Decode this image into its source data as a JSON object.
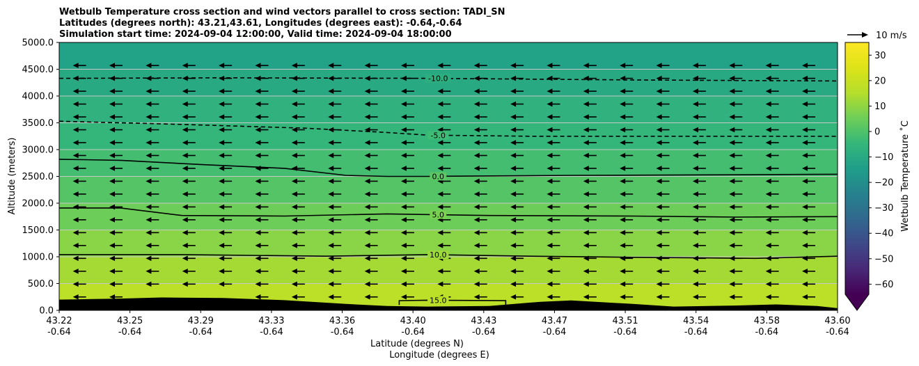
{
  "chart_data": {
    "type": "contourf",
    "title_lines": [
      "Wetbulb Temperature cross section and wind vectors parallel to cross section: TADI_SN",
      "Latitudes (degrees north): 43.21,43.61, Longitudes (degrees east): -0.64,-0.64",
      "Simulation start time: 2024-09-04 12:00:00, Valid time: 2024-09-04 18:00:00"
    ],
    "xlabel": "Latitude (degrees N)",
    "xlabel2": "Longitude (degrees E)",
    "ylabel": "Altitude (meters)",
    "ylim": [
      0,
      5000
    ],
    "x_ticks": [
      {
        "lat": "43.22",
        "lon": "-0.64"
      },
      {
        "lat": "43.25",
        "lon": "-0.64"
      },
      {
        "lat": "43.29",
        "lon": "-0.64"
      },
      {
        "lat": "43.33",
        "lon": "-0.64"
      },
      {
        "lat": "43.36",
        "lon": "-0.64"
      },
      {
        "lat": "43.40",
        "lon": "-0.64"
      },
      {
        "lat": "43.43",
        "lon": "-0.64"
      },
      {
        "lat": "43.47",
        "lon": "-0.64"
      },
      {
        "lat": "43.51",
        "lon": "-0.64"
      },
      {
        "lat": "43.54",
        "lon": "-0.64"
      },
      {
        "lat": "43.58",
        "lon": "-0.64"
      },
      {
        "lat": "43.60",
        "lon": "-0.64"
      }
    ],
    "x_range": [
      43.22,
      43.6
    ],
    "y_ticks": [
      "0.0",
      "500.0",
      "1000.0",
      "1500.0",
      "2000.0",
      "2500.0",
      "3000.0",
      "3500.0",
      "4000.0",
      "4500.0",
      "5000.0"
    ],
    "grid": "horizontal",
    "colorbar": {
      "label": "Wetbulb Temperature $^\\circ$C",
      "label_display": "Wetbulb Temperature ˚C",
      "ticks": [
        "−60",
        "−50",
        "−40",
        "−30",
        "−20",
        "−10",
        "0",
        "10",
        "20",
        "30"
      ],
      "range": [
        -64,
        35
      ],
      "colormap": "viridis",
      "extend": "min"
    },
    "quiver_key": {
      "label": "10 m/s"
    },
    "wind": {
      "direction": "toward decreasing latitude",
      "approx_speed_ms": 6
    },
    "contours": [
      {
        "level": -10.0,
        "label": "-10.0",
        "style": "dashed",
        "x": [
          43.22,
          43.3,
          43.4,
          43.5,
          43.6
        ],
        "y": [
          4330,
          4340,
          4330,
          4300,
          4280
        ]
      },
      {
        "level": -5.0,
        "label": "-5.0",
        "style": "dashed",
        "x": [
          43.22,
          43.28,
          43.34,
          43.38,
          43.4,
          43.45,
          43.52,
          43.6
        ],
        "y": [
          3530,
          3470,
          3400,
          3320,
          3270,
          3250,
          3250,
          3250
        ]
      },
      {
        "level": 0.0,
        "label": "0.0",
        "style": "solid",
        "x": [
          43.22,
          43.25,
          43.29,
          43.33,
          43.36,
          43.38,
          43.4,
          43.47,
          43.55,
          43.6
        ],
        "y": [
          2820,
          2800,
          2720,
          2650,
          2520,
          2500,
          2500,
          2520,
          2530,
          2540
        ]
      },
      {
        "level": 5.0,
        "label": "5.0",
        "style": "solid",
        "x": [
          43.22,
          43.25,
          43.28,
          43.33,
          43.38,
          43.43,
          43.5,
          43.55,
          43.6
        ],
        "y": [
          1910,
          1910,
          1770,
          1760,
          1800,
          1770,
          1760,
          1740,
          1750
        ]
      },
      {
        "level": 10.0,
        "label": "10.0",
        "style": "solid",
        "x": [
          43.22,
          43.28,
          43.35,
          43.4,
          43.45,
          43.5,
          43.56,
          43.6
        ],
        "y": [
          1040,
          1040,
          1010,
          1040,
          1010,
          990,
          970,
          1010
        ]
      },
      {
        "level": 15.0,
        "label": "15.0",
        "style": "solid",
        "x": [
          43.386,
          43.386,
          43.4,
          43.438,
          43.438
        ],
        "y": [
          100,
          180,
          190,
          180,
          100
        ]
      }
    ],
    "terrain": {
      "x": [
        43.22,
        43.25,
        43.27,
        43.3,
        43.33,
        43.36,
        43.38,
        43.4,
        43.43,
        43.455,
        43.47,
        43.5,
        43.52,
        43.55,
        43.57,
        43.59,
        43.6
      ],
      "y": [
        200,
        220,
        240,
        230,
        190,
        120,
        80,
        70,
        80,
        160,
        185,
        120,
        70,
        90,
        110,
        80,
        40
      ]
    },
    "color_bands": [
      {
        "z0": 0,
        "z1": 500,
        "temp": 17
      },
      {
        "z0": 500,
        "z1": 1000,
        "temp": 13
      },
      {
        "z0": 1000,
        "z1": 1500,
        "temp": 9
      },
      {
        "z0": 1500,
        "z1": 2000,
        "temp": 5
      },
      {
        "z0": 2000,
        "z1": 2500,
        "temp": 1
      },
      {
        "z0": 2500,
        "z1": 3000,
        "temp": -2
      },
      {
        "z0": 3000,
        "z1": 3500,
        "temp": -5
      },
      {
        "z0": 3500,
        "z1": 4000,
        "temp": -7
      },
      {
        "z0": 4000,
        "z1": 4500,
        "temp": -10
      },
      {
        "z0": 4500,
        "z1": 5000,
        "temp": -13
      }
    ]
  }
}
